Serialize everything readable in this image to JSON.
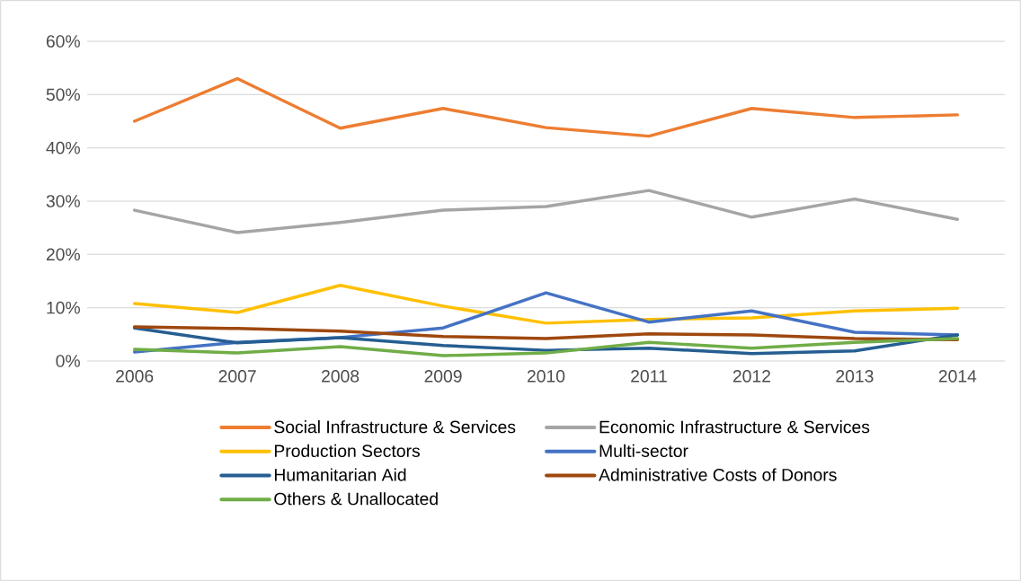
{
  "chart_data": {
    "type": "line",
    "categories": [
      "2006",
      "2007",
      "2008",
      "2009",
      "2010",
      "2011",
      "2012",
      "2013",
      "2014"
    ],
    "series": [
      {
        "name": "Social Infrastructure & Services",
        "color": "#ed7d31",
        "values": [
          45.0,
          53.0,
          43.7,
          47.4,
          43.8,
          42.2,
          47.4,
          45.7,
          46.2
        ]
      },
      {
        "name": "Economic Infrastructure & Services",
        "color": "#a5a5a5",
        "values": [
          28.3,
          24.1,
          26.0,
          28.3,
          29.0,
          32.0,
          27.0,
          30.4,
          26.6
        ]
      },
      {
        "name": "Production Sectors",
        "color": "#ffc000",
        "values": [
          10.8,
          9.1,
          14.2,
          10.3,
          7.1,
          7.8,
          8.1,
          9.4,
          9.9
        ]
      },
      {
        "name": "Multi-sector",
        "color": "#4472c4",
        "values": [
          1.7,
          3.5,
          4.4,
          6.2,
          12.8,
          7.3,
          9.4,
          5.4,
          4.9
        ]
      },
      {
        "name": "Humanitarian Aid",
        "color": "#255e91",
        "values": [
          6.2,
          3.4,
          4.4,
          2.9,
          2.0,
          2.4,
          1.4,
          1.9,
          4.9
        ]
      },
      {
        "name": "Administrative Costs of Donors",
        "color": "#9e480e",
        "values": [
          6.4,
          6.1,
          5.6,
          4.6,
          4.2,
          5.1,
          4.9,
          4.2,
          4.0
        ]
      },
      {
        "name": "Others & Unallocated",
        "color": "#70ad47",
        "values": [
          2.2,
          1.5,
          2.7,
          1.0,
          1.5,
          3.5,
          2.4,
          3.5,
          4.2
        ]
      }
    ],
    "ylim": [
      0,
      60
    ],
    "yticks": [
      {
        "value": 0,
        "label": "0%"
      },
      {
        "value": 10,
        "label": "10%"
      },
      {
        "value": 20,
        "label": "20%"
      },
      {
        "value": 30,
        "label": "30%"
      },
      {
        "value": 40,
        "label": "40%"
      },
      {
        "value": 50,
        "label": "50%"
      },
      {
        "value": 60,
        "label": "60%"
      }
    ],
    "grid": "y",
    "legend": "bottom",
    "marker": "none",
    "line_style": "solid"
  }
}
